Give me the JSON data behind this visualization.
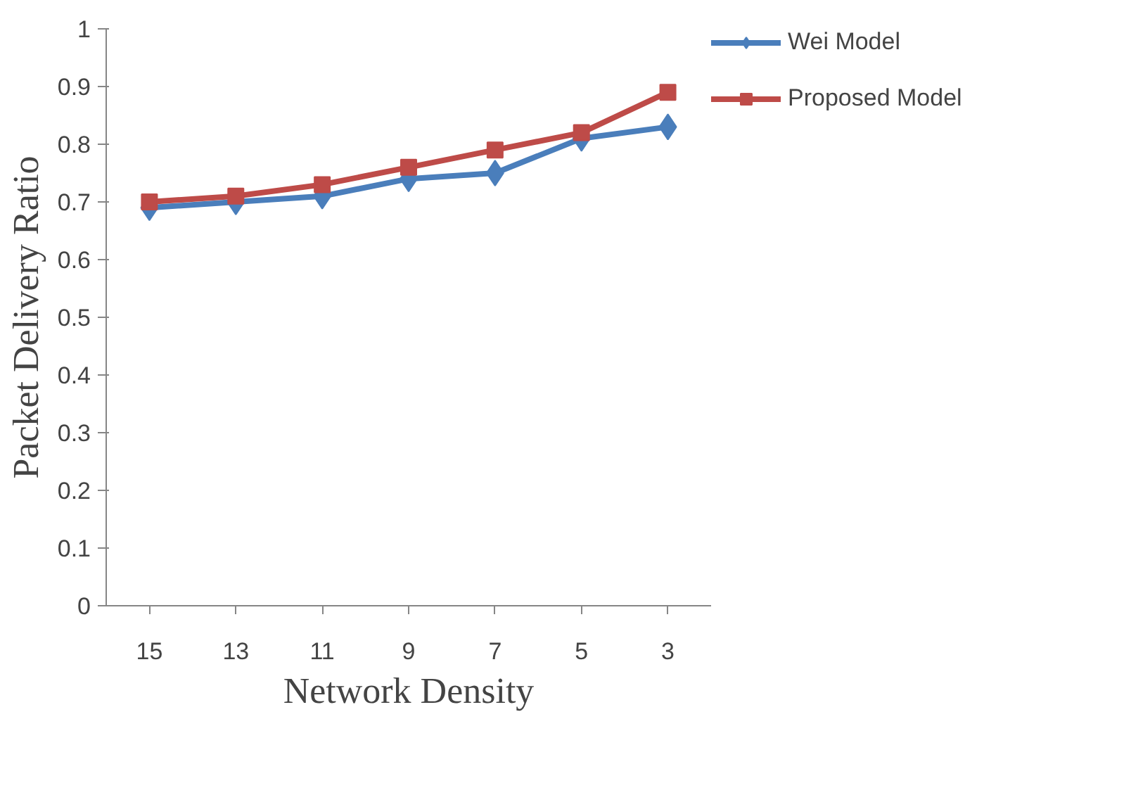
{
  "chart_data": {
    "type": "line",
    "xlabel": "Network Density",
    "ylabel": "Packet Delivery Ratio",
    "categories": [
      "15",
      "13",
      "11",
      "9",
      "7",
      "5",
      "3"
    ],
    "series": [
      {
        "name": "Wei Model",
        "color": "#4a7ebb",
        "marker": "diamond",
        "values": [
          0.69,
          0.7,
          0.71,
          0.74,
          0.75,
          0.81,
          0.83
        ]
      },
      {
        "name": "Proposed Model",
        "color": "#be4b48",
        "marker": "square",
        "values": [
          0.7,
          0.71,
          0.73,
          0.76,
          0.79,
          0.82,
          0.89
        ]
      }
    ],
    "ylim": [
      0,
      1
    ],
    "yticks": [
      0,
      0.1,
      0.2,
      0.3,
      0.4,
      0.5,
      0.6,
      0.7,
      0.8,
      0.9,
      1
    ],
    "grid": false,
    "legend": "right"
  }
}
